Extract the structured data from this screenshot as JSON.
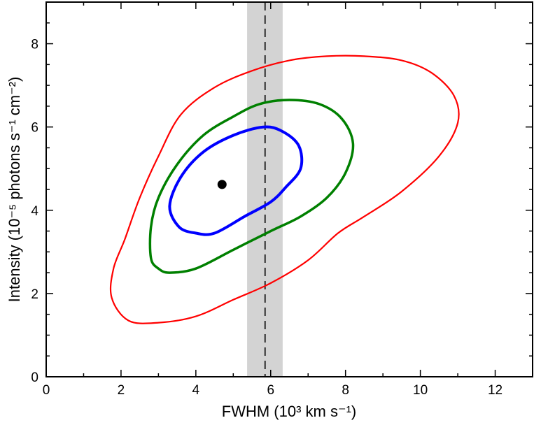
{
  "chart_data": {
    "type": "contour",
    "xlabel": "FWHM (10³ km s⁻¹)",
    "ylabel": "Intensity (10⁻⁵ photons s⁻¹ cm⁻²)",
    "xlim": [
      0,
      13
    ],
    "ylim": [
      0,
      9
    ],
    "x_ticks": [
      0,
      2,
      4,
      6,
      8,
      10,
      12
    ],
    "y_ticks": [
      0,
      2,
      4,
      6,
      8
    ],
    "best_fit_point": {
      "x": 4.7,
      "y": 4.62
    },
    "reference_line": {
      "x": 5.85,
      "band": [
        5.37,
        6.32
      ],
      "style": "dashed"
    },
    "contours": [
      {
        "color": "#0000ff",
        "points": [
          [
            4.5,
            3.45
          ],
          [
            5.3,
            3.85
          ],
          [
            6.0,
            4.2
          ],
          [
            6.4,
            4.55
          ],
          [
            6.8,
            5.0
          ],
          [
            6.75,
            5.55
          ],
          [
            6.3,
            5.9
          ],
          [
            5.8,
            6.0
          ],
          [
            5.0,
            5.8
          ],
          [
            4.2,
            5.4
          ],
          [
            3.6,
            4.8
          ],
          [
            3.3,
            4.1
          ],
          [
            3.55,
            3.6
          ],
          [
            4.0,
            3.45
          ]
        ]
      },
      {
        "color": "#008000",
        "points": [
          [
            2.8,
            2.85
          ],
          [
            3.0,
            2.6
          ],
          [
            3.3,
            2.5
          ],
          [
            4.0,
            2.6
          ],
          [
            5.0,
            3.05
          ],
          [
            6.0,
            3.5
          ],
          [
            6.8,
            3.85
          ],
          [
            7.5,
            4.3
          ],
          [
            8.0,
            4.9
          ],
          [
            8.2,
            5.6
          ],
          [
            7.9,
            6.2
          ],
          [
            7.3,
            6.55
          ],
          [
            6.5,
            6.65
          ],
          [
            5.7,
            6.55
          ],
          [
            5.0,
            6.25
          ],
          [
            4.2,
            5.8
          ],
          [
            3.5,
            5.1
          ],
          [
            3.0,
            4.3
          ],
          [
            2.8,
            3.6
          ]
        ]
      },
      {
        "color": "#ff0000",
        "points": [
          [
            1.75,
            1.9
          ],
          [
            2.2,
            1.35
          ],
          [
            3.0,
            1.3
          ],
          [
            4.0,
            1.45
          ],
          [
            5.0,
            1.85
          ],
          [
            6.0,
            2.25
          ],
          [
            7.0,
            2.8
          ],
          [
            7.8,
            3.45
          ],
          [
            8.5,
            3.85
          ],
          [
            9.5,
            4.45
          ],
          [
            10.5,
            5.3
          ],
          [
            11.0,
            6.1
          ],
          [
            10.9,
            6.75
          ],
          [
            10.3,
            7.3
          ],
          [
            9.5,
            7.6
          ],
          [
            8.5,
            7.7
          ],
          [
            7.5,
            7.7
          ],
          [
            6.5,
            7.6
          ],
          [
            5.5,
            7.35
          ],
          [
            4.5,
            6.95
          ],
          [
            3.6,
            6.3
          ],
          [
            3.0,
            5.3
          ],
          [
            2.5,
            4.3
          ],
          [
            2.1,
            3.3
          ],
          [
            1.8,
            2.6
          ]
        ]
      }
    ]
  }
}
